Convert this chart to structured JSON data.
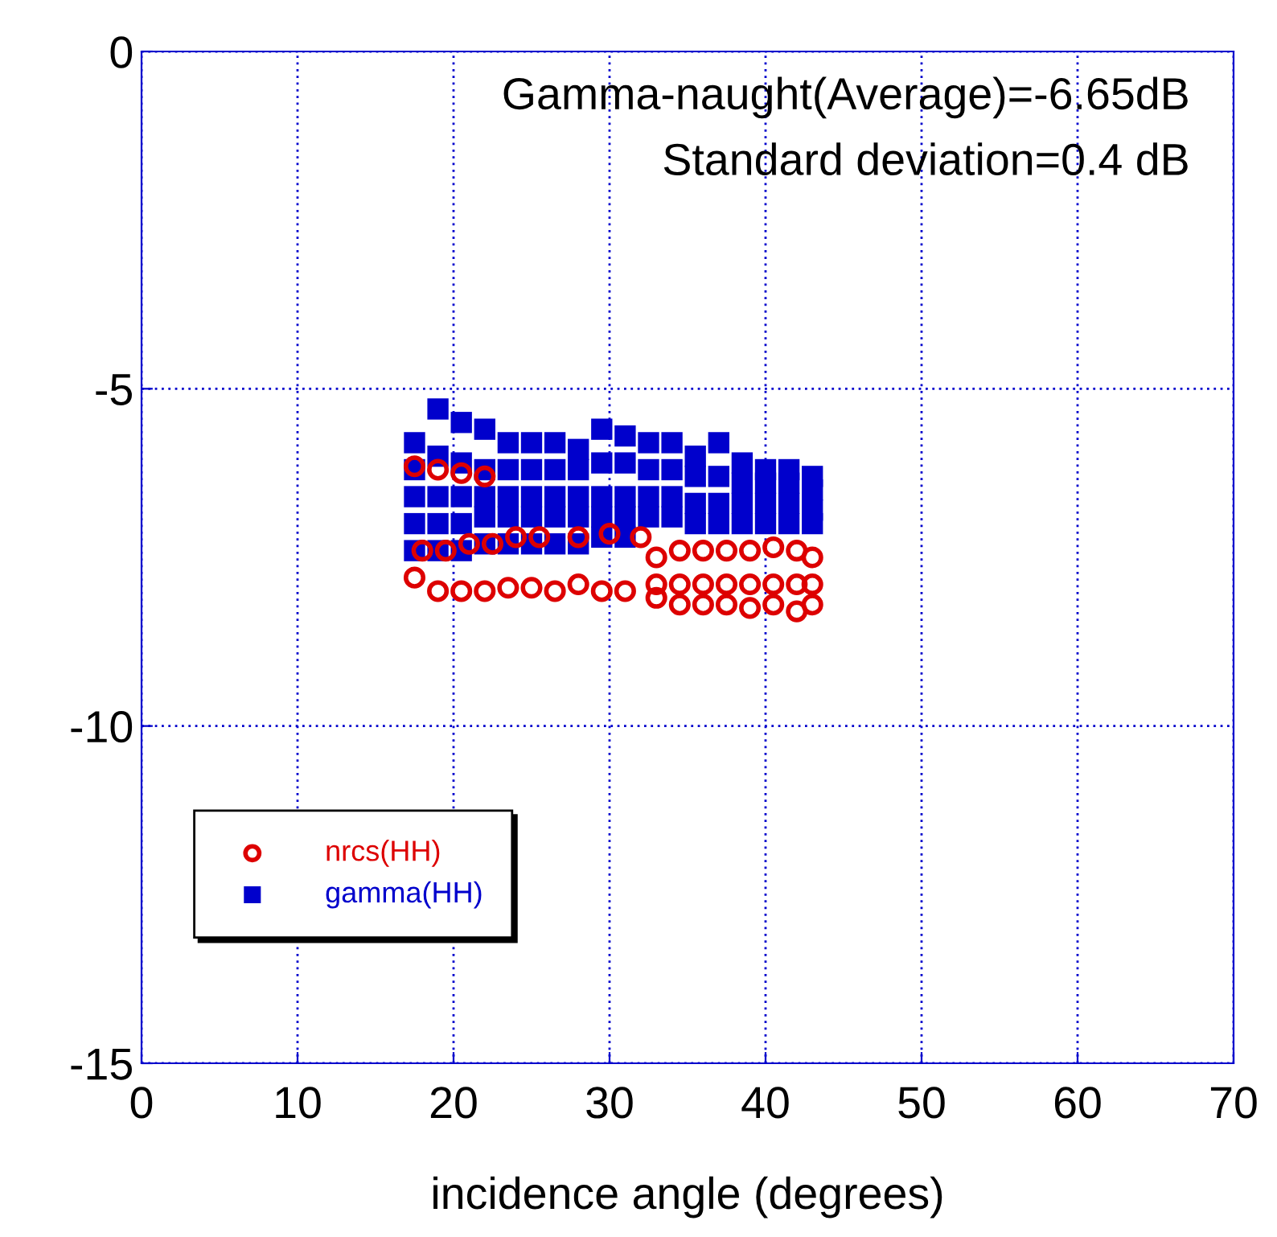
{
  "chart_data": {
    "type": "scatter",
    "xlabel": "incidence angle (degrees)",
    "annotations": [
      "Gamma-naught(Average)=-6.65dB",
      "Standard deviation=0.4 dB"
    ],
    "xlim": [
      0,
      70
    ],
    "ylim": [
      -15,
      0
    ],
    "xticks": [
      0,
      10,
      20,
      30,
      40,
      50,
      60,
      70
    ],
    "yticks": [
      -15,
      -10,
      -5,
      0
    ],
    "grid": true,
    "legend": "bottom left",
    "series": [
      {
        "name": "nrcs(HH)",
        "color": "#dd0000",
        "marker": "circle",
        "x": [
          17.5,
          19,
          20.5,
          22,
          18,
          19.5,
          21,
          22.5,
          24,
          25.5,
          28,
          30,
          32,
          17.5,
          19,
          20.5,
          22,
          23.5,
          25,
          26.5,
          28,
          29.5,
          31,
          33,
          33,
          34.5,
          36,
          37.5,
          39,
          40.5,
          42,
          43,
          33,
          34.5,
          36,
          37.5,
          39,
          40.5,
          42,
          43,
          34.5,
          36,
          37.5,
          39,
          40.5,
          42,
          43
        ],
        "values": [
          -6.15,
          -6.2,
          -6.25,
          -6.3,
          -7.4,
          -7.4,
          -7.3,
          -7.3,
          -7.2,
          -7.2,
          -7.2,
          -7.15,
          -7.2,
          -7.8,
          -8.0,
          -8.0,
          -8.0,
          -7.95,
          -7.95,
          -8.0,
          -7.9,
          -8.0,
          -8.0,
          -8.1,
          -7.5,
          -7.4,
          -7.4,
          -7.4,
          -7.4,
          -7.35,
          -7.4,
          -7.5,
          -7.9,
          -7.9,
          -7.9,
          -7.9,
          -7.9,
          -7.9,
          -7.9,
          -7.9,
          -8.2,
          -8.2,
          -8.2,
          -8.25,
          -8.2,
          -8.3,
          -8.2
        ]
      },
      {
        "name": "gamma(HH)",
        "color": "#0000cc",
        "marker": "square",
        "x": [
          17.5,
          19,
          20.5,
          22,
          23.5,
          25,
          26.5,
          28,
          29.5,
          31,
          32.5,
          34,
          35.5,
          37,
          38.5,
          40,
          41.5,
          43,
          17.5,
          19,
          20.5,
          22,
          23.5,
          25,
          26.5,
          28,
          29.5,
          31,
          32.5,
          34,
          35.5,
          37,
          38.5,
          40,
          41.5,
          43,
          17.5,
          19,
          20.5,
          22,
          23.5,
          25,
          26.5,
          28,
          29.5,
          31,
          32.5,
          34,
          35.5,
          37,
          38.5,
          40,
          41.5,
          43,
          17.5,
          19,
          20.5,
          22,
          23.5,
          25,
          26.5,
          28,
          29.5,
          31,
          32.5,
          34,
          35.5,
          37,
          38.5,
          40,
          41.5,
          43,
          17.5,
          19,
          20.5,
          22,
          23.5,
          25,
          26.5,
          28,
          29.5,
          31
        ],
        "values": [
          -5.8,
          -5.3,
          -5.5,
          -5.6,
          -5.8,
          -5.8,
          -5.8,
          -5.9,
          -5.6,
          -5.7,
          -5.8,
          -5.8,
          -6.0,
          -5.8,
          -6.1,
          -6.2,
          -6.2,
          -6.3,
          -6.2,
          -6.0,
          -6.1,
          -6.2,
          -6.2,
          -6.2,
          -6.2,
          -6.2,
          -6.1,
          -6.1,
          -6.2,
          -6.2,
          -6.3,
          -6.3,
          -6.4,
          -6.4,
          -6.4,
          -6.5,
          -6.6,
          -6.6,
          -6.6,
          -6.6,
          -6.6,
          -6.6,
          -6.6,
          -6.6,
          -6.6,
          -6.6,
          -6.6,
          -6.6,
          -6.7,
          -6.7,
          -6.7,
          -6.7,
          -6.7,
          -6.8,
          -7.0,
          -7.0,
          -7.0,
          -6.9,
          -6.9,
          -6.9,
          -6.9,
          -6.9,
          -6.9,
          -6.9,
          -6.9,
          -6.9,
          -7.0,
          -7.0,
          -7.0,
          -7.0,
          -7.0,
          -7.0,
          -7.4,
          -7.4,
          -7.4,
          -7.3,
          -7.3,
          -7.3,
          -7.3,
          -7.3,
          -7.2,
          -7.2
        ]
      }
    ]
  }
}
